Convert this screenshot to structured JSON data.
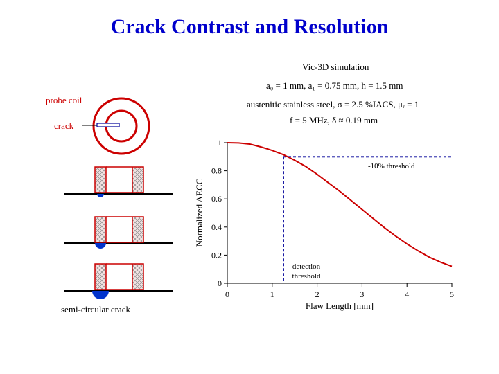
{
  "slide": {
    "title": "Crack Contrast and Resolution",
    "simulation": "Vic-3D simulation",
    "params_dims": "a₀ = 1 mm, a₁ = 0.75 mm, h = 1.5 mm",
    "params_material": "austenitic stainless steel, σ = 2.5 %IACS, μᵣ = 1",
    "params_freq": "f = 5 MHz, δ ≈ 0.19 mm",
    "probe_coil_label": "probe coil",
    "crack_label": "crack",
    "semi_circular_label": "semi-circular crack"
  },
  "chart_data": {
    "type": "line",
    "xlabel": "Flaw Length [mm]",
    "ylabel": "Normalized AECC",
    "xlim": [
      0,
      5
    ],
    "ylim": [
      0,
      1
    ],
    "x_ticks": [
      "0",
      "1",
      "2",
      "3",
      "4",
      "5"
    ],
    "y_ticks": [
      "0",
      "0.2",
      "0.4",
      "0.6",
      "0.8",
      "1"
    ],
    "series": [
      {
        "color": "#cc0000",
        "x": [
          0,
          0.25,
          0.5,
          0.75,
          1.0,
          1.25,
          1.5,
          1.75,
          2.0,
          2.25,
          2.5,
          2.75,
          3.0,
          3.25,
          3.5,
          3.75,
          4.0,
          4.25,
          4.5,
          4.75,
          5.0
        ],
        "y": [
          1.0,
          0.998,
          0.99,
          0.97,
          0.945,
          0.915,
          0.875,
          0.83,
          0.775,
          0.715,
          0.655,
          0.59,
          0.525,
          0.46,
          0.395,
          0.335,
          0.28,
          0.23,
          0.185,
          0.15,
          0.12
        ]
      }
    ],
    "threshold": {
      "y": 0.9,
      "x_intersect": 1.25,
      "label_top": "-10% threshold",
      "label_bottom_1": "detection",
      "label_bottom_2": "threshold",
      "color": "#000099"
    }
  }
}
